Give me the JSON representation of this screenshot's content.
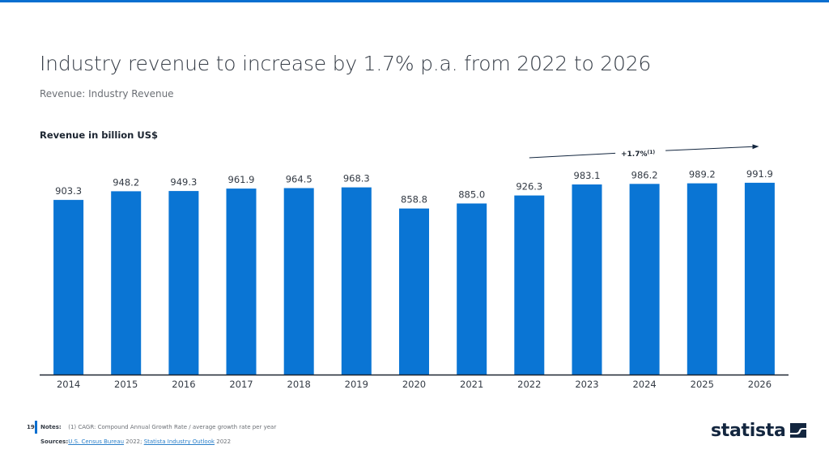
{
  "header": {
    "title": "Industry revenue to increase by 1.7% p.a. from 2022 to 2026",
    "subtitle": "Revenue: Industry Revenue"
  },
  "chart_data": {
    "type": "bar",
    "title": "Industry revenue to increase by 1.7% p.a. from 2022 to 2026",
    "subtitle": "Revenue: Industry Revenue",
    "ylabel": "Revenue in billion US$",
    "xlabel": "",
    "categories": [
      "2014",
      "2015",
      "2016",
      "2017",
      "2018",
      "2019",
      "2020",
      "2021",
      "2022",
      "2023",
      "2024",
      "2025",
      "2026"
    ],
    "values": [
      903.3,
      948.2,
      949.3,
      961.9,
      964.5,
      968.3,
      858.8,
      885.0,
      926.3,
      983.1,
      986.2,
      989.2,
      991.9
    ],
    "value_labels": [
      "903.3",
      "948.2",
      "949.3",
      "961.9",
      "964.5",
      "968.3",
      "858.8",
      "885.0",
      "926.3",
      "983.1",
      "986.2",
      "989.2",
      "991.9"
    ],
    "ylim": [
      0,
      1000
    ],
    "grid": false,
    "bar_color": "#0a75d4",
    "annotation": {
      "text": "+1.7%",
      "superscript": "(1)",
      "from_category": "2022",
      "to_category": "2026"
    }
  },
  "footer": {
    "page_number": "19",
    "notes_label": "Notes:",
    "notes_text": "(1) CAGR: Compound Annual Growth Rate / average growth rate per year",
    "sources_label": "Sources:",
    "source_1": "U.S. Census Bureau",
    "source_1_year": " 2022; ",
    "source_2": "Statista Industry Outlook",
    "source_2_year": " 2022",
    "brand": "statista"
  },
  "colors": {
    "accent": "#0a6fd0",
    "bar": "#0a75d4",
    "text_dark": "#333a44",
    "brand_navy": "#13263f"
  }
}
